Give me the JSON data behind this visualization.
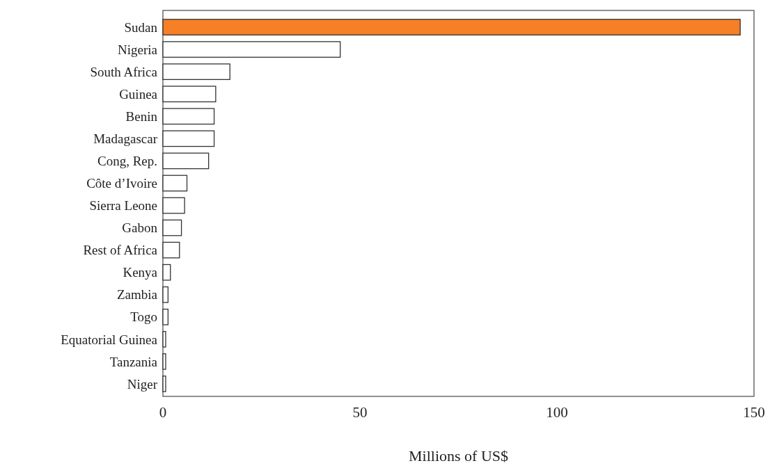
{
  "chart_data": {
    "type": "bar",
    "orientation": "horizontal",
    "xlabel": "Millions of US$",
    "categories": [
      "Sudan",
      "Nigeria",
      "South Africa",
      "Guinea",
      "Benin",
      "Madagascar",
      "Cong, Rep.",
      "Côte d’Ivoire",
      "Sierra Leone",
      "Gabon",
      "Rest of Africa",
      "Kenya",
      "Zambia",
      "Togo",
      "Equatorial Guinea",
      "Tanzania",
      "Niger"
    ],
    "values": [
      146.5,
      45,
      17,
      13.4,
      13,
      13,
      11.6,
      6.1,
      5.5,
      4.7,
      4.2,
      1.9,
      1.3,
      1.3,
      0.7,
      0.7,
      0.7
    ],
    "colors": [
      "#f58025",
      "#ffffff",
      "#ffffff",
      "#ffffff",
      "#ffffff",
      "#ffffff",
      "#ffffff",
      "#ffffff",
      "#ffffff",
      "#ffffff",
      "#ffffff",
      "#ffffff",
      "#ffffff",
      "#ffffff",
      "#ffffff",
      "#ffffff",
      "#ffffff"
    ],
    "xlim": [
      0,
      150
    ],
    "xticks": [
      0,
      50,
      100,
      150
    ],
    "grid": false
  }
}
